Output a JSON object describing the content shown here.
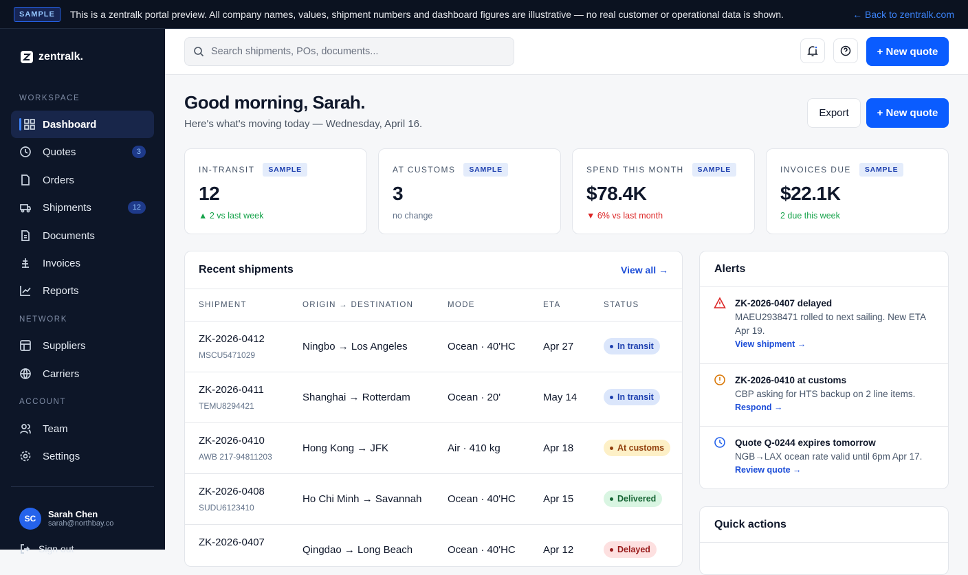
{
  "banner": {
    "badge": "SAMPLE",
    "text": "This is a zentralk portal preview. All company names, values, shipment numbers and dashboard figures are illustrative — no real customer or operational data is shown.",
    "link": "← Back to zentralk.com"
  },
  "sidebar": {
    "brand": "zentralk.",
    "sections": [
      {
        "title": "WORKSPACE",
        "items": [
          {
            "label": "Dashboard"
          },
          {
            "label": "Quotes",
            "count": 3
          },
          {
            "label": "Orders"
          },
          {
            "label": "Shipments",
            "count": 12
          },
          {
            "label": "Documents"
          },
          {
            "label": "Invoices"
          },
          {
            "label": "Reports"
          }
        ]
      },
      {
        "title": "NETWORK",
        "items": [
          {
            "label": "Suppliers"
          },
          {
            "label": "Carriers"
          }
        ]
      },
      {
        "title": "ACCOUNT",
        "items": [
          {
            "label": "Team"
          },
          {
            "label": "Settings"
          }
        ]
      }
    ],
    "user": {
      "initials": "SC",
      "name": "Sarah Chen",
      "email": "sarah@northbay.co"
    },
    "sign_out": "Sign out"
  },
  "header": {
    "search_placeholder": "Search shipments, POs, documents...",
    "new_quote": "+ New quote"
  },
  "page": {
    "greeting": "Good morning, Sarah.",
    "subtitle": "Here's what's moving today — Wednesday, April 16.",
    "export": "Export",
    "new_quote": "+ New quote"
  },
  "stats": [
    {
      "label": "IN-TRANSIT",
      "badge": "SAMPLE",
      "value": 12,
      "note": "▲ 2 vs last week"
    },
    {
      "label": "AT CUSTOMS",
      "badge": "SAMPLE",
      "value": 3,
      "note": "no change"
    },
    {
      "label": "SPEND THIS MONTH",
      "badge": "SAMPLE",
      "value": "$78.4K",
      "note": "▼ 6% vs last month"
    },
    {
      "label": "INVOICES DUE",
      "badge": "SAMPLE",
      "value": "$22.1K",
      "note": "2 due this week"
    }
  ],
  "shipments": {
    "title": "Recent shipments",
    "view_all": "View all →",
    "columns": [
      "SHIPMENT",
      "ORIGIN → DESTINATION",
      "MODE",
      "ETA",
      "STATUS"
    ],
    "rows": [
      {
        "id": "ZK-2026-0412",
        "ref": "MSCU5471029",
        "route": "Ningbo → Los Angeles",
        "mode": "Ocean · 40'HC",
        "eta": "Apr 27",
        "status": "In transit"
      },
      {
        "id": "ZK-2026-0411",
        "ref": "TEMU8294421",
        "route": "Shanghai → Rotterdam",
        "mode": "Ocean · 20'",
        "eta": "May 14",
        "status": "In transit"
      },
      {
        "id": "ZK-2026-0410",
        "ref": "AWB 217-94811203",
        "route": "Hong Kong → JFK",
        "mode": "Air · 410 kg",
        "eta": "Apr 18",
        "status": "At customs"
      },
      {
        "id": "ZK-2026-0408",
        "ref": "SUDU6123410",
        "route": "Ho Chi Minh → Savannah",
        "mode": "Ocean · 40'HC",
        "eta": "Apr 15",
        "status": "Delivered"
      },
      {
        "id": "ZK-2026-0407",
        "route": "Qingdao → Long Beach",
        "mode": "Ocean · 40'HC",
        "eta": "Apr 12",
        "status": "Delayed"
      }
    ]
  },
  "alerts": {
    "title": "Alerts",
    "items": [
      {
        "title": "ZK-2026-0407 delayed",
        "body": "MAEU2938471 rolled to next sailing. New ETA Apr 19.",
        "link": "View shipment →"
      },
      {
        "title": "ZK-2026-0410 at customs",
        "body": "CBP asking for HTS backup on 2 line items.",
        "link": "Respond →"
      },
      {
        "title": "Quote Q-0244 expires tomorrow",
        "body": "NGB→LAX ocean rate valid until 6pm Apr 17.",
        "link": "Review quote →"
      }
    ]
  },
  "quick_actions": {
    "title": "Quick actions"
  }
}
